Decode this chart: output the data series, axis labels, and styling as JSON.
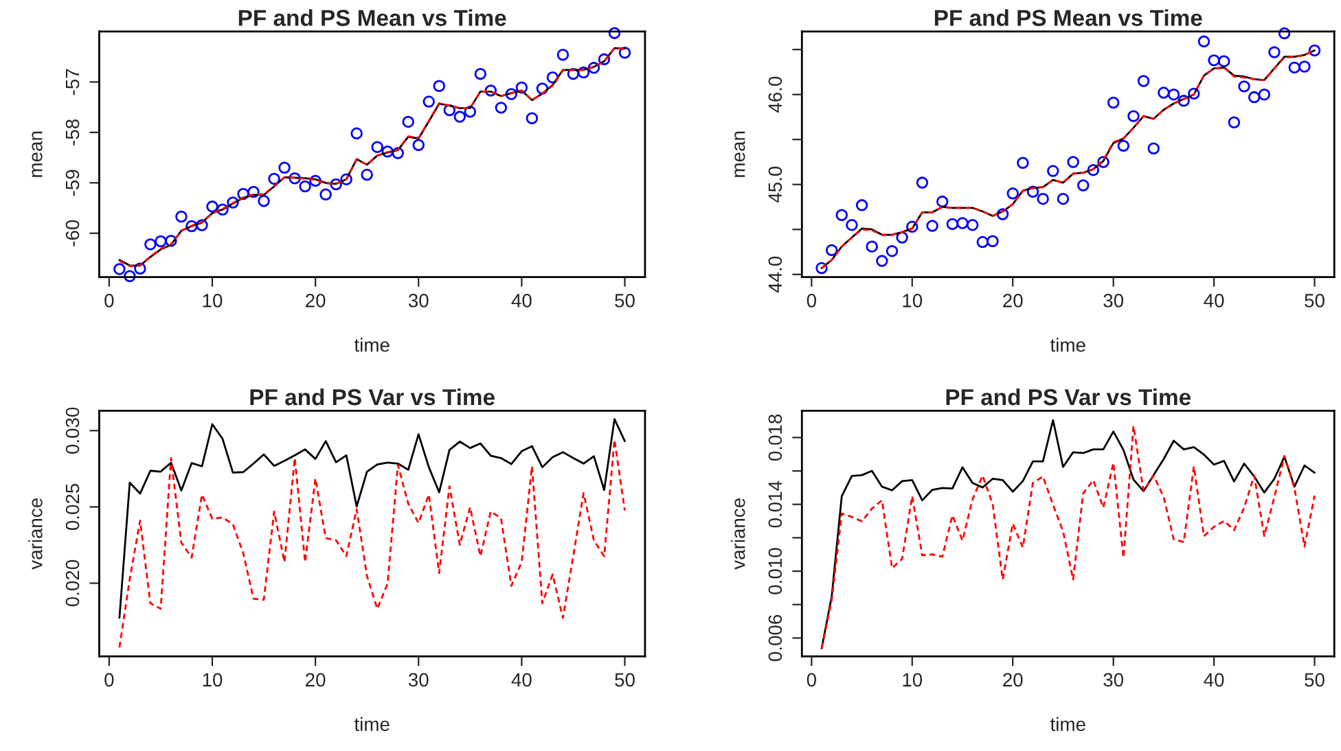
{
  "chart_data": [
    {
      "type": "line",
      "title": "PF and PS Mean vs Time",
      "xlabel": "time",
      "ylabel": "mean",
      "x": [
        1,
        2,
        3,
        4,
        5,
        6,
        7,
        8,
        9,
        10,
        11,
        12,
        13,
        14,
        15,
        16,
        17,
        18,
        19,
        20,
        21,
        22,
        23,
        24,
        25,
        26,
        27,
        28,
        29,
        30,
        31,
        32,
        33,
        34,
        35,
        36,
        37,
        38,
        39,
        40,
        41,
        42,
        43,
        44,
        45,
        46,
        47,
        48,
        49,
        50
      ],
      "xlim": [
        -0.96,
        51.96
      ],
      "xticks": [
        0,
        10,
        20,
        30,
        40,
        50
      ],
      "ylim": [
        -60.87,
        -56.0
      ],
      "yticks": [
        -60,
        -59,
        -58,
        -57
      ],
      "series": [
        {
          "type": "scatter",
          "marker": "circle",
          "color": "#0000ff",
          "values": [
            -60.71,
            -60.85,
            -60.7,
            -60.22,
            -60.16,
            -60.15,
            -59.67,
            -59.86,
            -59.84,
            -59.47,
            -59.53,
            -59.39,
            -59.22,
            -59.18,
            -59.36,
            -58.92,
            -58.7,
            -58.91,
            -59.07,
            -58.96,
            -59.23,
            -59.03,
            -58.93,
            -58.02,
            -58.84,
            -58.29,
            -58.38,
            -58.41,
            -57.79,
            -58.25,
            -57.39,
            -57.08,
            -57.56,
            -57.69,
            -57.59,
            -56.84,
            -57.17,
            -57.51,
            -57.24,
            -57.11,
            -57.72,
            -57.13,
            -56.91,
            -56.46,
            -56.84,
            -56.81,
            -56.72,
            -56.55,
            -56.03,
            -56.42
          ]
        },
        {
          "type": "line",
          "line_style": "dashed",
          "color": "#ff0000",
          "values": [
            -60.55,
            -60.65,
            -60.64,
            -60.46,
            -60.31,
            -60.22,
            -59.95,
            -59.85,
            -59.78,
            -59.6,
            -59.52,
            -59.4,
            -59.29,
            -59.23,
            -59.23,
            -59.06,
            -58.89,
            -58.9,
            -58.92,
            -58.94,
            -59.01,
            -59.02,
            -58.93,
            -58.54,
            -58.64,
            -58.46,
            -58.39,
            -58.34,
            -58.08,
            -58.11,
            -57.77,
            -57.42,
            -57.47,
            -57.52,
            -57.52,
            -57.19,
            -57.19,
            -57.28,
            -57.22,
            -57.17,
            -57.36,
            -57.23,
            -57.07,
            -56.77,
            -56.76,
            -56.76,
            -56.7,
            -56.59,
            -56.33,
            -56.35
          ]
        },
        {
          "type": "line",
          "line_style": "solid",
          "color": "#000000",
          "values": [
            -60.53,
            -60.64,
            -60.64,
            -60.47,
            -60.32,
            -60.23,
            -59.95,
            -59.86,
            -59.79,
            -59.6,
            -59.53,
            -59.41,
            -59.3,
            -59.24,
            -59.24,
            -59.07,
            -58.89,
            -58.9,
            -58.91,
            -58.93,
            -59.0,
            -59.02,
            -58.93,
            -58.53,
            -58.64,
            -58.46,
            -58.4,
            -58.35,
            -58.09,
            -58.12,
            -57.78,
            -57.43,
            -57.47,
            -57.52,
            -57.52,
            -57.19,
            -57.19,
            -57.28,
            -57.22,
            -57.17,
            -57.36,
            -57.23,
            -57.06,
            -56.76,
            -56.76,
            -56.76,
            -56.7,
            -56.59,
            -56.33,
            -56.34
          ]
        }
      ]
    },
    {
      "type": "line",
      "title": "PF and PS Mean vs Time",
      "xlabel": "time",
      "ylabel": "mean",
      "x": [
        1,
        2,
        3,
        4,
        5,
        6,
        7,
        8,
        9,
        10,
        11,
        12,
        13,
        14,
        15,
        16,
        17,
        18,
        19,
        20,
        21,
        22,
        23,
        24,
        25,
        26,
        27,
        28,
        29,
        30,
        31,
        32,
        33,
        34,
        35,
        36,
        37,
        38,
        39,
        40,
        41,
        42,
        43,
        44,
        45,
        46,
        47,
        48,
        49,
        50
      ],
      "xlim": [
        -0.96,
        51.96
      ],
      "xticks": [
        0,
        10,
        20,
        30,
        40,
        50
      ],
      "ylim": [
        43.97,
        46.7
      ],
      "yticks": [
        {
          "value": 44.0,
          "label": "44.0"
        },
        {
          "value": 44.5,
          "label": null
        },
        {
          "value": 45.0,
          "label": "45.0"
        },
        {
          "value": 45.5,
          "label": null
        },
        {
          "value": 46.0,
          "label": "46.0"
        },
        {
          "value": 46.5,
          "label": null
        }
      ],
      "series": [
        {
          "type": "scatter",
          "marker": "circle",
          "color": "#0000ff",
          "values": [
            44.07,
            44.27,
            44.66,
            44.55,
            44.77,
            44.31,
            44.15,
            44.26,
            44.41,
            44.53,
            45.02,
            44.54,
            44.81,
            44.56,
            44.57,
            44.55,
            44.36,
            44.37,
            44.67,
            44.9,
            45.24,
            44.92,
            44.84,
            45.15,
            44.84,
            45.25,
            44.99,
            45.16,
            45.25,
            45.91,
            45.43,
            45.76,
            46.15,
            45.4,
            46.02,
            46.0,
            45.93,
            46.01,
            46.59,
            46.38,
            46.37,
            45.69,
            46.09,
            45.97,
            46.0,
            46.47,
            46.68,
            46.3,
            46.31,
            46.49
          ]
        },
        {
          "type": "line",
          "line_style": "dashed",
          "color": "#ff0000",
          "values": [
            44.07,
            44.16,
            44.31,
            44.41,
            44.5,
            44.49,
            44.44,
            44.44,
            44.47,
            44.51,
            44.69,
            44.69,
            44.75,
            44.74,
            44.74,
            44.74,
            44.7,
            44.65,
            44.7,
            44.78,
            44.93,
            44.96,
            44.97,
            45.05,
            45.02,
            45.12,
            45.13,
            45.17,
            45.27,
            45.47,
            45.51,
            45.63,
            45.76,
            45.73,
            45.83,
            45.9,
            45.95,
            46.0,
            46.21,
            46.29,
            46.3,
            46.2,
            46.19,
            46.17,
            46.16,
            46.29,
            46.41,
            46.42,
            46.44,
            46.49
          ]
        },
        {
          "type": "line",
          "line_style": "solid",
          "color": "#000000",
          "values": [
            44.07,
            44.16,
            44.31,
            44.41,
            44.51,
            44.5,
            44.44,
            44.44,
            44.47,
            44.51,
            44.69,
            44.69,
            44.75,
            44.74,
            44.74,
            44.74,
            44.7,
            44.65,
            44.7,
            44.78,
            44.93,
            44.96,
            44.97,
            45.05,
            45.02,
            45.12,
            45.13,
            45.17,
            45.26,
            45.46,
            45.51,
            45.63,
            45.76,
            45.73,
            45.83,
            45.9,
            45.95,
            46.0,
            46.21,
            46.29,
            46.3,
            46.21,
            46.2,
            46.17,
            46.16,
            46.29,
            46.42,
            46.42,
            46.44,
            46.49
          ]
        }
      ]
    },
    {
      "type": "line",
      "title": "PF and PS Var vs Time",
      "xlabel": "time",
      "ylabel": "variance",
      "x": [
        1,
        2,
        3,
        4,
        5,
        6,
        7,
        8,
        9,
        10,
        11,
        12,
        13,
        14,
        15,
        16,
        17,
        18,
        19,
        20,
        21,
        22,
        23,
        24,
        25,
        26,
        27,
        28,
        29,
        30,
        31,
        32,
        33,
        34,
        35,
        36,
        37,
        38,
        39,
        40,
        41,
        42,
        43,
        44,
        45,
        46,
        47,
        48,
        49,
        50
      ],
      "xlim": [
        -0.96,
        51.96
      ],
      "xticks": [
        0,
        10,
        20,
        30,
        40,
        50
      ],
      "ylim": [
        0.0152,
        0.0313
      ],
      "yticks": [
        {
          "value": 0.02,
          "label": "0.020"
        },
        {
          "value": 0.025,
          "label": "0.025"
        },
        {
          "value": 0.03,
          "label": "0.030"
        }
      ],
      "series": [
        {
          "type": "line",
          "line_style": "solid",
          "color": "#000000",
          "values": [
            0.01773,
            0.02659,
            0.02587,
            0.02737,
            0.02731,
            0.0279,
            0.02608,
            0.02787,
            0.02766,
            0.03042,
            0.02946,
            0.02725,
            0.02728,
            0.02784,
            0.02844,
            0.02769,
            0.02802,
            0.02838,
            0.02877,
            0.02814,
            0.02931,
            0.02793,
            0.02838,
            0.02503,
            0.02731,
            0.02778,
            0.0279,
            0.02784,
            0.02743,
            0.02976,
            0.0276,
            0.02596,
            0.02874,
            0.02928,
            0.02886,
            0.02916,
            0.02835,
            0.0282,
            0.02781,
            0.02865,
            0.02898,
            0.0276,
            0.02826,
            0.02859,
            0.0282,
            0.02784,
            0.02832,
            0.02611,
            0.03075,
            0.02931
          ]
        },
        {
          "type": "line",
          "line_style": "dashed",
          "color": "#ff0000",
          "values": [
            0.01578,
            0.02027,
            0.0241,
            0.01868,
            0.01832,
            0.0282,
            0.02266,
            0.02168,
            0.02581,
            0.02422,
            0.02431,
            0.02386,
            0.02198,
            0.01898,
            0.01892,
            0.0247,
            0.02138,
            0.0282,
            0.02138,
            0.02686,
            0.02296,
            0.02281,
            0.02177,
            0.02485,
            0.02048,
            0.01832,
            0.01997,
            0.02775,
            0.02521,
            0.02395,
            0.02581,
            0.02066,
            0.02635,
            0.02251,
            0.02497,
            0.02177,
            0.0247,
            0.02425,
            0.01982,
            0.02138,
            0.02766,
            0.01868,
            0.02057,
            0.01772,
            0.02177,
            0.0259,
            0.02281,
            0.02177,
            0.0294,
            0.02476
          ]
        }
      ]
    },
    {
      "type": "line",
      "title": "PF and PS Var vs Time",
      "xlabel": "time",
      "ylabel": "variance",
      "x": [
        1,
        2,
        3,
        4,
        5,
        6,
        7,
        8,
        9,
        10,
        11,
        12,
        13,
        14,
        15,
        16,
        17,
        18,
        19,
        20,
        21,
        22,
        23,
        24,
        25,
        26,
        27,
        28,
        29,
        30,
        31,
        32,
        33,
        34,
        35,
        36,
        37,
        38,
        39,
        40,
        41,
        42,
        43,
        44,
        45,
        46,
        47,
        48,
        49,
        50
      ],
      "xlim": [
        -0.96,
        51.96
      ],
      "xticks": [
        0,
        10,
        20,
        30,
        40,
        50
      ],
      "ylim": [
        0.0049,
        0.0196
      ],
      "yticks": [
        {
          "value": 0.006,
          "label": "0.006"
        },
        {
          "value": 0.008,
          "label": null
        },
        {
          "value": 0.01,
          "label": "0.010"
        },
        {
          "value": 0.012,
          "label": null
        },
        {
          "value": 0.014,
          "label": "0.014"
        },
        {
          "value": 0.016,
          "label": null
        },
        {
          "value": 0.018,
          "label": "0.018"
        }
      ],
      "series": [
        {
          "type": "line",
          "line_style": "solid",
          "color": "#000000",
          "values": [
            0.00538,
            0.00848,
            0.01449,
            0.0157,
            0.01575,
            0.016,
            0.01506,
            0.01484,
            0.01539,
            0.01545,
            0.01424,
            0.01487,
            0.01498,
            0.01495,
            0.01622,
            0.01528,
            0.01501,
            0.01553,
            0.01545,
            0.01476,
            0.01539,
            0.01657,
            0.01657,
            0.01904,
            0.01624,
            0.01712,
            0.01707,
            0.01729,
            0.01729,
            0.01836,
            0.01726,
            0.01548,
            0.01479,
            0.01575,
            0.01671,
            0.01781,
            0.01729,
            0.01742,
            0.01698,
            0.01638,
            0.0166,
            0.01537,
            0.01644,
            0.01567,
            0.01471,
            0.01553,
            0.01685,
            0.01506,
            0.01633,
            0.01589
          ]
        },
        {
          "type": "line",
          "line_style": "dashed",
          "color": "#ff0000",
          "values": [
            0.00538,
            0.00826,
            0.01345,
            0.01325,
            0.01298,
            0.01375,
            0.01424,
            0.01018,
            0.01073,
            0.01449,
            0.01095,
            0.011,
            0.01087,
            0.01334,
            0.01183,
            0.0143,
            0.01572,
            0.01402,
            0.0095,
            0.01284,
            0.01142,
            0.01528,
            0.01567,
            0.01397,
            0.01238,
            0.0095,
            0.01465,
            0.01545,
            0.0138,
            0.01649,
            0.01081,
            0.01869,
            0.01479,
            0.01572,
            0.01443,
            0.01191,
            0.01174,
            0.01627,
            0.0121,
            0.01265,
            0.01301,
            0.01246,
            0.0138,
            0.01572,
            0.01211,
            0.01443,
            0.0169,
            0.01498,
            0.01147,
            0.01452
          ]
        }
      ]
    }
  ]
}
